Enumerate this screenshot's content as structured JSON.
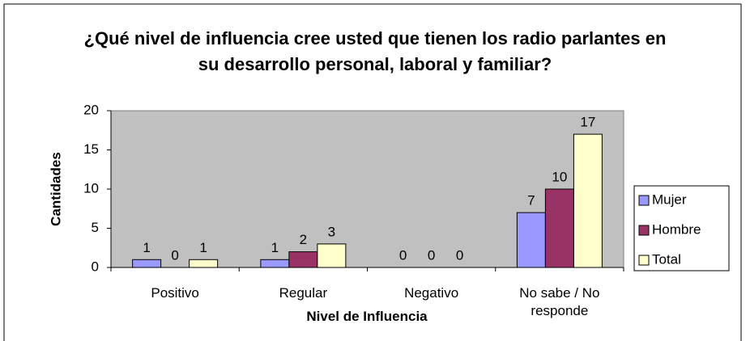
{
  "chart_data": {
    "type": "bar",
    "title": "¿Qué nivel de influencia cree usted que tienen los radio parlantes en su desarrollo personal, laboral y familiar?",
    "x_label": "Nivel de Influencia",
    "y_label": "Cantidades",
    "categories": [
      "Positivo",
      "Regular",
      "Negativo",
      "No sabe / No responde"
    ],
    "series": [
      {
        "name": "Mujer",
        "color": "#9999ff",
        "values": [
          1,
          1,
          0,
          7
        ]
      },
      {
        "name": "Hombre",
        "color": "#993366",
        "values": [
          0,
          2,
          0,
          10
        ]
      },
      {
        "name": "Total",
        "color": "#ffffcc",
        "values": [
          1,
          3,
          0,
          17
        ]
      }
    ],
    "ylim": [
      0,
      20
    ],
    "yticks": [
      0,
      5,
      10,
      15,
      20
    ],
    "grid": false,
    "legend": "right"
  }
}
